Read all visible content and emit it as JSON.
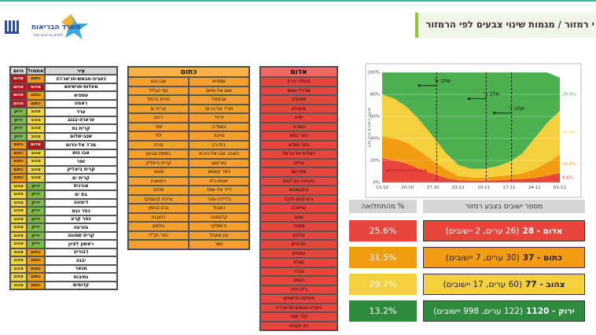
{
  "header": {
    "title": "י רמזור / מגמות שינוי צבעים לפי הרמזור",
    "logo_name": "משרד הבריאות",
    "logo_tagline": "לחיים בריאים יותר"
  },
  "status_colors": {
    "אדום": "#b8141a",
    "כתום": "#f39c12",
    "צהוב": "#f6d743",
    "ירוק": "#7dbb4a"
  },
  "status_text_colors": {
    "אדום": "#ffffff",
    "כתום": "#222222",
    "צהוב": "#222222",
    "ירוק": "#222222"
  },
  "left_table": {
    "columns": [
      "עיר",
      "אתמול",
      "היום"
    ],
    "rows": [
      [
        "כעביה-טבאש-חג'אג'רה",
        "כתום",
        "אדום"
      ],
      [
        "מעלות-תרשיחא",
        "אדום",
        "אדום"
      ],
      [
        "עספיא",
        "כתום",
        "אדום"
      ],
      [
        "ראמה",
        "כתום",
        "אדום"
      ],
      [
        "ערד",
        "צהוב",
        "ירוק"
      ],
      [
        "ערערה-בנגב",
        "צהוב",
        "ירוק"
      ],
      [
        "קרית גת",
        "צהוב",
        "ירוק"
      ],
      [
        "שגב-שלום",
        "צהוב",
        "ירוק"
      ],
      [
        "מג'ד אל-כרום",
        "אדום",
        "כתום"
      ],
      [
        "אבו גוש",
        "צהוב",
        "כתום"
      ],
      [
        "זמר",
        "צהוב",
        "כתום"
      ],
      [
        "קרית ביאליק",
        "צהוב",
        "כתום"
      ],
      [
        "קרית ים",
        "צהוב",
        "כתום"
      ],
      [
        "אורנית",
        "ירוק",
        "צהוב"
      ],
      [
        "בת ים",
        "ירוק",
        "צהוב"
      ],
      [
        "דימונה",
        "ירוק",
        "צהוב"
      ],
      [
        "כפר כנא",
        "ירוק",
        "צהוב"
      ],
      [
        "כפר קרע",
        "ירוק",
        "צהוב"
      ],
      [
        "מזרעה",
        "ירוק",
        "צהוב"
      ],
      [
        "קרית שמונה",
        "ירוק",
        "צהוב"
      ],
      [
        "ראשון לציון",
        "ירוק",
        "צהוב"
      ],
      [
        "דבוריה",
        "כתום",
        "צהוב"
      ],
      [
        "יבנה",
        "כתום",
        "צהוב"
      ],
      [
        "מגאר",
        "כתום",
        "צהוב"
      ],
      [
        "נתיבות",
        "כתום",
        "צהוב"
      ],
      [
        "קדומים",
        "כתום",
        "צהוב"
      ]
    ]
  },
  "orange_list": {
    "title": "כתום",
    "color": "#f5a02a",
    "header_color": "#f7b04a",
    "right": [
      "עספיא",
      "אום אל-פחם",
      "אכסאל",
      "מג'ד אל-כרום",
      "זרזיר",
      "בסמ\"ה",
      "טייבה",
      "בית ג'ן",
      "כאוכב אבו אל-היג'א",
      "טורעאן",
      "כפר קאסם",
      "יאנוח-ג'ת",
      "דייר אל-אסד",
      "ג'דיידה-מכר",
      "כאבול",
      "קלנסווה",
      "ירושלים",
      "עין מאהל",
      "נשר"
    ],
    "left": [
      "אבו גוש",
      "נוף הגליל",
      "טירת כרמל",
      "קרית ים",
      "רהט",
      "זמר",
      "לוד",
      "טירה",
      "בסמת טבעון",
      "קרית ביאליק",
      "מגאר",
      "רומאנה",
      "סולם",
      "טייבה (בעמק)",
      "גבע בנימין",
      "רחובות",
      "טלמון",
      "כפר חב\"ד"
    ]
  },
  "red_list": {
    "title": "אדום",
    "color": "#e8453c",
    "header_color": "#ee6a62",
    "items": [
      "מעלה עירון",
      "מג'דל שמס",
      "מסעדה",
      "אעבלין",
      "יפיע",
      "טמרה",
      "כפר כמא",
      "כפר מנדא",
      "דאלית אל-כרמל",
      "עילוט",
      "שפרעם",
      "בועיינה-נוג'ידאת",
      "בוקעאתא",
      "ג'ש (גוש חלב)",
      "עראבה",
      "שעב",
      "משהד",
      "עילבון",
      "חורפיש",
      "עספיא",
      "נצרת",
      "ע'ג'ר",
      "ראמה",
      "ג'לג'וליה",
      "מעלות-תרשיחא",
      "כעביה-טבאש-חג'אג'רה",
      "כפר מצר",
      "עין נקובא"
    ]
  },
  "summary": {
    "columns": [
      "מספר ישובים בצבע רמזור",
      "% מהתחלואה"
    ],
    "rows": [
      {
        "label": "אדום - 28",
        "detail": "(26 ערים, 2 יישובים)",
        "percent": "25.6%",
        "color": "#e8453c",
        "text_color": "#ffffff"
      },
      {
        "label": "כתום - 37",
        "detail": "(30 ערים, 7 יישובים)",
        "percent": "31.5%",
        "color": "#f39c12",
        "text_color": "#222222"
      },
      {
        "label": "צהוב - 77",
        "detail": "(60 ערים, 17 יישובים)",
        "percent": "29.7%",
        "color": "#f4d03f",
        "text_color": "#222222"
      },
      {
        "label": "ירוק - 1120",
        "detail": "(122 ערים, 998 יישובים)",
        "percent": "13.2%",
        "color": "#2e8b3e",
        "text_color": "#ffffff"
      }
    ]
  },
  "chart_data": {
    "type": "stacked_area",
    "y_label": "שיעור הישובים בכל צבע",
    "note": "שיעור נדבקים בתחילת הסגר",
    "categories": [
      "13-10",
      null,
      "20-10",
      null,
      "27-10",
      null,
      "03-11",
      null,
      "10-11",
      null,
      "17-11",
      null,
      "24-11",
      null,
      "01-12"
    ],
    "series": [
      {
        "name": "אדום",
        "color": "#e8453c",
        "values": [
          22,
          20,
          17,
          12,
          8,
          4,
          2,
          1.5,
          1.5,
          2,
          2.5,
          3,
          4,
          6,
          8.6
        ],
        "value_labels": [
          null,
          null,
          null,
          null,
          null,
          null,
          null,
          null,
          null,
          null,
          null,
          null,
          null,
          null,
          "8.6%"
        ]
      },
      {
        "name": "כתום",
        "color": "#f39c12",
        "values": [
          20,
          20,
          19,
          16,
          12,
          8,
          4,
          3,
          3,
          3.5,
          4,
          5,
          8,
          12,
          16.6
        ],
        "value_labels": [
          null,
          null,
          null,
          null,
          null,
          null,
          null,
          null,
          null,
          null,
          null,
          null,
          null,
          null,
          "16.6%"
        ]
      },
      {
        "name": "צהוב",
        "color": "#f4d03f",
        "values": [
          38,
          36,
          32,
          28,
          22,
          15,
          10,
          8,
          8,
          9,
          12,
          18,
          28,
          36,
          40.0
        ],
        "value_labels": [
          null,
          null,
          null,
          null,
          null,
          null,
          null,
          null,
          null,
          null,
          null,
          null,
          null,
          null,
          "40.0%"
        ]
      },
      {
        "name": "ירוק",
        "color": "#4caf50",
        "values": [
          20,
          24,
          32,
          44,
          58,
          73,
          84,
          87.5,
          87.5,
          85.5,
          81.5,
          74,
          60,
          46,
          29.9
        ],
        "value_labels": [
          null,
          null,
          null,
          null,
          null,
          null,
          null,
          null,
          null,
          null,
          null,
          null,
          null,
          null,
          "29.9%"
        ]
      }
    ],
    "phases": [
      {
        "label": "שלב א'",
        "x": 4.3,
        "y": 88
      },
      {
        "label": "שלב ב'",
        "x": 8.2,
        "y": 76
      },
      {
        "label": "שלב ג'",
        "x": 10.2,
        "y": 63
      }
    ],
    "ylim": [
      0,
      100
    ],
    "yticks": [
      {
        "value": 0,
        "label": "0%"
      },
      {
        "value": 20,
        "label": "20%"
      },
      {
        "value": 40,
        "label": "40%"
      },
      {
        "value": 60,
        "label": "60%"
      },
      {
        "value": 80,
        "label": "80%"
      },
      {
        "value": 100,
        "label": "100%"
      }
    ],
    "grid": true
  }
}
